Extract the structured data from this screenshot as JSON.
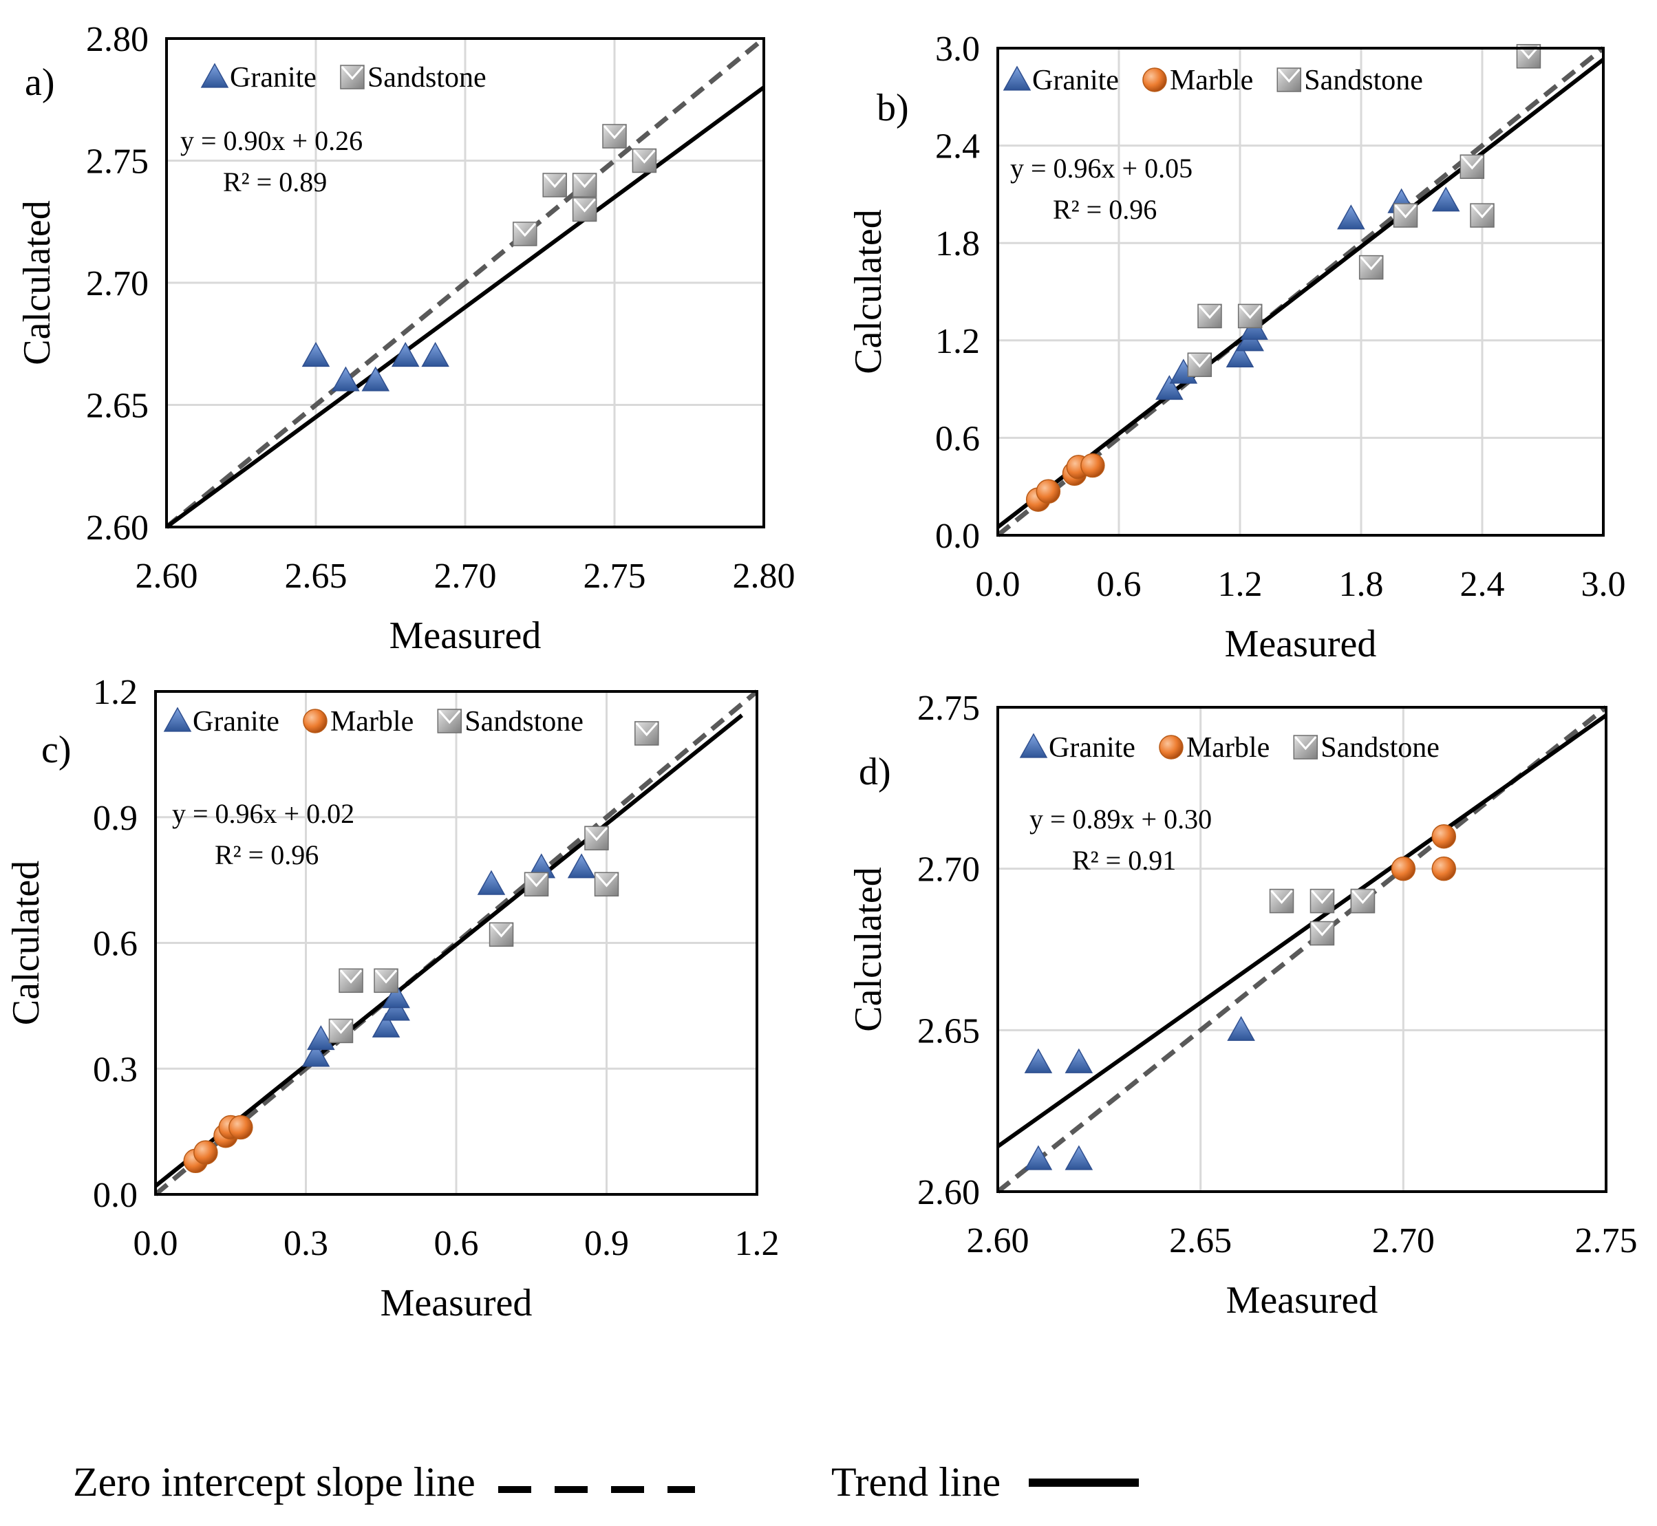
{
  "footer": {
    "zero_line_label": "Zero intercept slope line",
    "trend_line_label": "Trend line"
  },
  "colors": {
    "granite": "#4472c4",
    "marble": "#ed7d31",
    "sandstone": "#a6a6a6",
    "trend": "#000000",
    "zero_line": "#595959",
    "grid": "#d9d9d9"
  },
  "chart_data": [
    {
      "type": "scatter",
      "panel_label": "a)",
      "xlabel": "Measured",
      "ylabel": "Calculated",
      "xlim": [
        2.6,
        2.8
      ],
      "ylim": [
        2.6,
        2.8
      ],
      "xticks": [
        "2.60",
        "2.65",
        "2.70",
        "2.75",
        "2.80"
      ],
      "yticks": [
        "2.60",
        "2.65",
        "2.70",
        "2.75",
        "2.80"
      ],
      "equation": "y = 0.90x + 0.26",
      "r2": "R² = 0.89",
      "trend": {
        "slope": 0.9,
        "intercept": 0.26
      },
      "legend": [
        "Granite",
        "Sandstone"
      ],
      "series": [
        {
          "name": "Granite",
          "marker": "triangle",
          "points": [
            [
              2.65,
              2.67
            ],
            [
              2.66,
              2.66
            ],
            [
              2.67,
              2.66
            ],
            [
              2.68,
              2.67
            ],
            [
              2.69,
              2.67
            ]
          ]
        },
        {
          "name": "Sandstone",
          "marker": "square",
          "points": [
            [
              2.72,
              2.72
            ],
            [
              2.73,
              2.74
            ],
            [
              2.74,
              2.74
            ],
            [
              2.74,
              2.73
            ],
            [
              2.75,
              2.76
            ],
            [
              2.76,
              2.75
            ]
          ]
        }
      ]
    },
    {
      "type": "scatter",
      "panel_label": "b)",
      "xlabel": "Measured",
      "ylabel": "Calculated",
      "xlim": [
        0.0,
        3.0
      ],
      "ylim": [
        0.0,
        3.0
      ],
      "xticks": [
        "0.0",
        "0.6",
        "1.2",
        "1.8",
        "2.4",
        "3.0"
      ],
      "yticks": [
        "0.0",
        "0.6",
        "1.2",
        "1.8",
        "2.4",
        "3.0"
      ],
      "equation": "y = 0.96x + 0.05",
      "r2": "R² = 0.96",
      "trend": {
        "slope": 0.96,
        "intercept": 0.05
      },
      "legend": [
        "Granite",
        "Marble",
        "Sandstone"
      ],
      "series": [
        {
          "name": "Granite",
          "marker": "triangle",
          "points": [
            [
              0.85,
              0.9
            ],
            [
              0.92,
              1.0
            ],
            [
              1.2,
              1.1
            ],
            [
              1.25,
              1.2
            ],
            [
              1.27,
              1.27
            ],
            [
              1.75,
              1.95
            ],
            [
              2.0,
              2.05
            ],
            [
              2.22,
              2.06
            ]
          ]
        },
        {
          "name": "Marble",
          "marker": "circle",
          "points": [
            [
              0.2,
              0.22
            ],
            [
              0.25,
              0.27
            ],
            [
              0.38,
              0.38
            ],
            [
              0.4,
              0.42
            ],
            [
              0.47,
              0.43
            ]
          ]
        },
        {
          "name": "Sandstone",
          "marker": "square",
          "points": [
            [
              1.0,
              1.05
            ],
            [
              1.05,
              1.35
            ],
            [
              1.25,
              1.35
            ],
            [
              1.85,
              1.65
            ],
            [
              2.02,
              1.97
            ],
            [
              2.35,
              2.27
            ],
            [
              2.4,
              1.97
            ],
            [
              2.63,
              2.95
            ]
          ]
        }
      ]
    },
    {
      "type": "scatter",
      "panel_label": "c)",
      "xlabel": "Measured",
      "ylabel": "Calculated",
      "xlim": [
        0.0,
        1.2
      ],
      "ylim": [
        0.0,
        1.2
      ],
      "xticks": [
        "0.0",
        "0.3",
        "0.6",
        "0.9",
        "1.2"
      ],
      "yticks": [
        "0.0",
        "0.3",
        "0.6",
        "0.9",
        "1.2"
      ],
      "equation": "y = 0.96x + 0.02",
      "r2": "R² = 0.96",
      "trend": {
        "slope": 0.96,
        "intercept": 0.02
      },
      "legend": [
        "Granite",
        "Marble",
        "Sandstone"
      ],
      "series": [
        {
          "name": "Granite",
          "marker": "triangle",
          "points": [
            [
              0.32,
              0.33
            ],
            [
              0.33,
              0.37
            ],
            [
              0.46,
              0.4
            ],
            [
              0.48,
              0.44
            ],
            [
              0.48,
              0.47
            ],
            [
              0.67,
              0.74
            ],
            [
              0.77,
              0.78
            ],
            [
              0.85,
              0.78
            ]
          ]
        },
        {
          "name": "Marble",
          "marker": "circle",
          "points": [
            [
              0.08,
              0.08
            ],
            [
              0.1,
              0.1
            ],
            [
              0.14,
              0.14
            ],
            [
              0.15,
              0.16
            ],
            [
              0.17,
              0.16
            ]
          ]
        },
        {
          "name": "Sandstone",
          "marker": "square",
          "points": [
            [
              0.37,
              0.39
            ],
            [
              0.39,
              0.51
            ],
            [
              0.46,
              0.51
            ],
            [
              0.69,
              0.62
            ],
            [
              0.76,
              0.74
            ],
            [
              0.88,
              0.85
            ],
            [
              0.9,
              0.74
            ],
            [
              0.98,
              1.1
            ]
          ]
        }
      ]
    },
    {
      "type": "scatter",
      "panel_label": "d)",
      "xlabel": "Measured",
      "ylabel": "Calculated",
      "xlim": [
        2.6,
        2.75
      ],
      "ylim": [
        2.6,
        2.75
      ],
      "xticks": [
        "2.60",
        "2.65",
        "2.70",
        "2.75"
      ],
      "yticks": [
        "2.60",
        "2.65",
        "2.70",
        "2.75"
      ],
      "equation": "y = 0.89x + 0.30",
      "r2": "R² = 0.91",
      "trend": {
        "slope": 0.89,
        "intercept": 0.3
      },
      "legend": [
        "Granite",
        "Marble",
        "Sandstone"
      ],
      "series": [
        {
          "name": "Granite",
          "marker": "triangle",
          "points": [
            [
              2.61,
              2.64
            ],
            [
              2.62,
              2.64
            ],
            [
              2.61,
              2.61
            ],
            [
              2.62,
              2.61
            ],
            [
              2.66,
              2.65
            ]
          ]
        },
        {
          "name": "Marble",
          "marker": "circle",
          "points": [
            [
              2.7,
              2.7
            ],
            [
              2.71,
              2.71
            ],
            [
              2.71,
              2.7
            ]
          ]
        },
        {
          "name": "Sandstone",
          "marker": "square",
          "points": [
            [
              2.67,
              2.69
            ],
            [
              2.68,
              2.69
            ],
            [
              2.68,
              2.68
            ],
            [
              2.69,
              2.69
            ],
            [
              2.69,
              2.69
            ]
          ]
        }
      ]
    }
  ]
}
